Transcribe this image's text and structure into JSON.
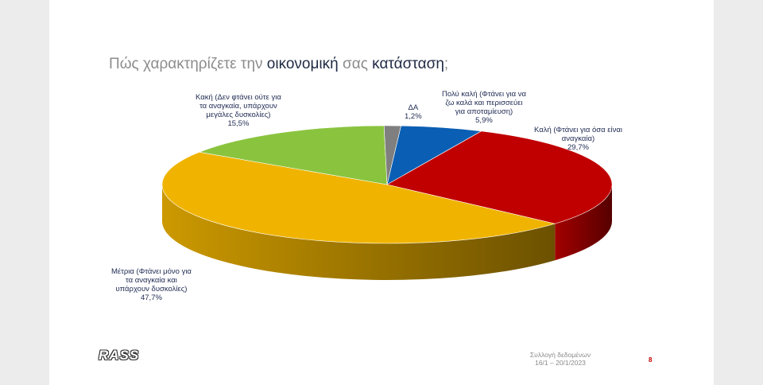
{
  "title": {
    "part1": "Πώς χαρακτηρίζετε την ",
    "kw1": "οικονομική",
    "part2": " σας ",
    "kw2": "κατάσταση",
    "part3": ";"
  },
  "chart_data": {
    "type": "pie",
    "title": "Πώς χαρακτηρίζετε την οικονομική σας κατάσταση;",
    "slices": [
      {
        "name": "Πολύ καλή (Φτάνει για να ζω καλά και περισσεύει για αποταμίευση)",
        "value": 5.9,
        "label": "5,9%",
        "color": "#0a5fb4"
      },
      {
        "name": "Καλή (Φτάνει για όσα είναι αναγκαία)",
        "value": 29.7,
        "label": "29,7%",
        "color": "#c00000"
      },
      {
        "name": "Μέτρια (Φτάνει μόνο για τα αναγκαία και υπάρχουν δυσκολίες)",
        "value": 47.7,
        "label": "47,7%",
        "color": "#f0b400"
      },
      {
        "name": "Κακή (Δεν φτάνει ούτε για τα αναγκαία, υπάρχουν μεγάλες δυσκολίες)",
        "value": 15.5,
        "label": "15,5%",
        "color": "#8ac43f"
      },
      {
        "name": "ΔΑ",
        "value": 1.2,
        "label": "1,2%",
        "color": "#7f7f7f"
      }
    ]
  },
  "labels": {
    "poly_kali": [
      "Πολύ καλή (Φτάνει για να",
      "ζω καλά και περισσεύει",
      "για αποταμίευση)",
      "5,9%"
    ],
    "kali": [
      "Καλή (Φτάνει για όσα είναι",
      "αναγκαία)",
      "29,7%"
    ],
    "metria": [
      "Μέτρια (Φτάνει μόνο για",
      "τα αναγκαία και",
      "υπάρχουν δυσκολίες)",
      "47,7%"
    ],
    "kaki": [
      "Κακή (Δεν φτάνει ούτε για",
      "τα αναγκαία, υπάρχουν",
      "μεγάλες δυσκολίες)",
      "15,5%"
    ],
    "da": [
      "ΔΑ",
      "1,2%"
    ]
  },
  "logo": "RASS",
  "footer": {
    "line1": "Συλλογή δεδομένων",
    "line2": "16/1 – 20/1/2023",
    "page": "8"
  }
}
